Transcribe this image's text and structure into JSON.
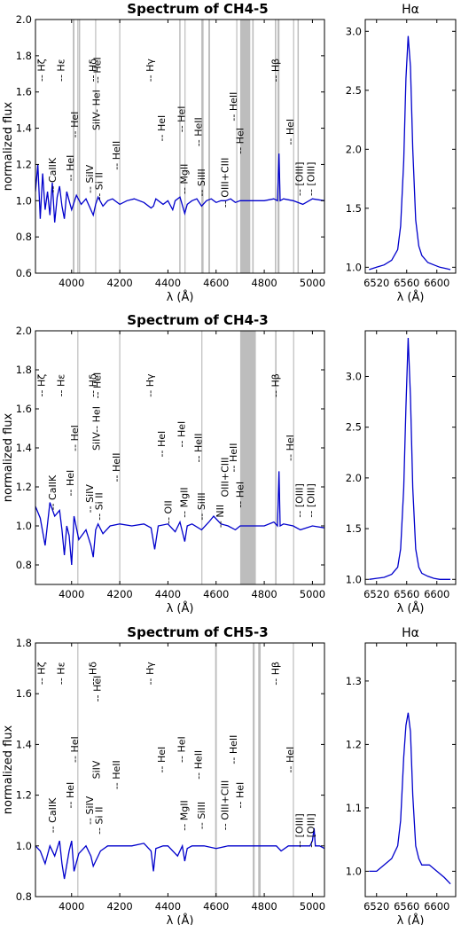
{
  "chart_data": [
    {
      "type": "line",
      "title": "Spectrum of CH4-5",
      "xlabel": "λ (Å)",
      "ylabel": "normalized flux",
      "xlim": [
        3850,
        5050
      ],
      "ylim": [
        0.6,
        2.0
      ],
      "xticks": [
        4000,
        4200,
        4400,
        4600,
        4800,
        5000
      ],
      "yticks": [
        0.6,
        0.8,
        1.0,
        1.2,
        1.4,
        1.6,
        1.8,
        2.0
      ],
      "line_color": "#0000cc",
      "band_color": "#bdbdbd",
      "thin_lines": [
        4026,
        4100,
        4200,
        4471,
        4541,
        4686,
        4713,
        4861,
        4922
      ],
      "bands": [
        [
          4005,
          4012
        ],
        [
          4030,
          4035
        ],
        [
          4447,
          4452
        ],
        [
          4540,
          4548
        ],
        [
          4568,
          4575
        ],
        [
          4700,
          4742
        ],
        [
          4750,
          4756
        ],
        [
          4844,
          4850
        ],
        [
          4855,
          4860
        ],
        [
          4938,
          4943
        ]
      ],
      "series": [
        {
          "x": [
            3850,
            3860,
            3870,
            3880,
            3890,
            3900,
            3910,
            3920,
            3930,
            3940,
            3950,
            3960,
            3970,
            3980,
            3990,
            4000,
            4020,
            4040,
            4060,
            4080,
            4090,
            4100,
            4110,
            4130,
            4150,
            4170,
            4200,
            4230,
            4260,
            4300,
            4330,
            4340,
            4350,
            4380,
            4400,
            4420,
            4430,
            4450,
            4470,
            4480,
            4500,
            4520,
            4540,
            4560,
            4580,
            4600,
            4620,
            4640,
            4660,
            4680,
            4700,
            4720,
            4760,
            4800,
            4840,
            4855,
            4861,
            4866,
            4880,
            4920,
            4960,
            5000,
            5050
          ],
          "y": [
            1.05,
            1.2,
            0.9,
            1.15,
            0.95,
            1.05,
            0.92,
            1.1,
            0.88,
            1.02,
            1.08,
            0.97,
            0.9,
            1.05,
            1.0,
            0.95,
            1.03,
            0.98,
            1.01,
            0.95,
            0.92,
            0.98,
            1.02,
            0.97,
            1.0,
            1.01,
            0.98,
            1.0,
            1.01,
            0.99,
            0.96,
            0.97,
            1.01,
            0.98,
            1.0,
            0.95,
            1.0,
            1.02,
            0.93,
            0.98,
            1.0,
            1.01,
            0.97,
            1.0,
            1.01,
            0.99,
            1.0,
            1.0,
            1.01,
            0.99,
            1.0,
            1.0,
            1.0,
            1.0,
            1.01,
            1.0,
            1.26,
            1.0,
            1.01,
            1.0,
            0.98,
            1.01,
            1.0
          ]
        }
      ],
      "annotations": [
        {
          "text": "-- Hζ",
          "x": 3889,
          "y": 1.72
        },
        {
          "text": "-- Hε",
          "x": 3970,
          "y": 1.72
        },
        {
          "text": "-- HeI",
          "x": 4009,
          "y": 1.18
        },
        {
          "text": "-- HeI",
          "x": 4026,
          "y": 1.42
        },
        {
          "text": "-- Hδ",
          "x": 4102,
          "y": 1.72
        },
        {
          "text": "-- HeI",
          "x": 4121,
          "y": 1.72
        },
        {
          "text": "-- HeII",
          "x": 4200,
          "y": 1.25
        },
        {
          "text": "-- Hγ",
          "x": 4340,
          "y": 1.72
        },
        {
          "text": "-- HeI",
          "x": 4388,
          "y": 1.4
        },
        {
          "text": "-- HeI",
          "x": 4471,
          "y": 1.45
        },
        {
          "text": "-- HeII",
          "x": 4541,
          "y": 1.38
        },
        {
          "text": "-- HeI",
          "x": 4713,
          "y": 1.33
        },
        {
          "text": "-- HeII",
          "x": 4686,
          "y": 1.52
        },
        {
          "text": "-- Hβ",
          "x": 4861,
          "y": 1.72
        },
        {
          "text": "-- HeI",
          "x": 4922,
          "y": 1.38
        },
        {
          "text": "-- CaIIK",
          "x": 3934,
          "y": 1.14
        },
        {
          "text": "-- SiIV",
          "x": 4089,
          "y": 1.12
        },
        {
          "text": "-- Si II",
          "x": 4128,
          "y": 1.08
        },
        {
          "text": "SiIV- HeI",
          "x": 4116,
          "y": 1.5
        },
        {
          "text": "-- MgII",
          "x": 4481,
          "y": 1.12
        },
        {
          "text": "-- SiIII",
          "x": 4553,
          "y": 1.1
        },
        {
          "text": "-- OIII+CIII",
          "x": 4650,
          "y": 1.1
        },
        {
          "text": "-- [OIII]",
          "x": 4959,
          "y": 1.12
        },
        {
          "text": "-- [OIII]",
          "x": 5007,
          "y": 1.12
        }
      ]
    },
    {
      "type": "line",
      "title": "Hα",
      "xlabel": "λ (Å)",
      "ylabel": "",
      "xlim": [
        6505,
        6625
      ],
      "ylim": [
        0.95,
        3.1
      ],
      "xticks": [
        6520,
        6560,
        6600
      ],
      "yticks": [
        1.0,
        1.5,
        2.0,
        2.5,
        3.0
      ],
      "line_color": "#0000cc",
      "series": [
        {
          "x": [
            6510,
            6520,
            6530,
            6540,
            6548,
            6552,
            6556,
            6559,
            6562,
            6565,
            6568,
            6572,
            6576,
            6580,
            6588,
            6596,
            6604,
            6612,
            6618
          ],
          "y": [
            0.98,
            1.0,
            1.02,
            1.06,
            1.15,
            1.35,
            1.9,
            2.6,
            2.96,
            2.7,
            2.0,
            1.4,
            1.18,
            1.1,
            1.04,
            1.02,
            1.0,
            0.99,
            0.98
          ]
        }
      ]
    },
    {
      "type": "line",
      "title": "Spectrum of CH4-3",
      "xlabel": "λ (Å)",
      "ylabel": "normalized flux",
      "xlim": [
        3850,
        5050
      ],
      "ylim": [
        0.7,
        2.0
      ],
      "xticks": [
        4000,
        4200,
        4400,
        4600,
        4800,
        5000
      ],
      "yticks": [
        0.8,
        1.0,
        1.2,
        1.4,
        1.6,
        1.8,
        2.0
      ],
      "line_color": "#0000cc",
      "band_color": "#bdbdbd",
      "thin_lines": [
        4026,
        4200,
        4541,
        4922
      ],
      "bands": [
        [
          4700,
          4765
        ],
        [
          4845,
          4851
        ]
      ],
      "series": [
        {
          "x": [
            3850,
            3870,
            3890,
            3910,
            3930,
            3950,
            3960,
            3970,
            3980,
            3990,
            4000,
            4010,
            4030,
            4060,
            4080,
            4090,
            4100,
            4110,
            4130,
            4160,
            4200,
            4250,
            4300,
            4330,
            4345,
            4360,
            4400,
            4430,
            4450,
            4470,
            4480,
            4500,
            4540,
            4570,
            4590,
            4620,
            4650,
            4680,
            4700,
            4760,
            4800,
            4840,
            4855,
            4861,
            4866,
            4880,
            4920,
            4950,
            5000,
            5050
          ],
          "y": [
            1.1,
            1.04,
            0.9,
            1.12,
            1.05,
            1.08,
            0.98,
            0.85,
            1.0,
            0.95,
            0.8,
            1.05,
            0.93,
            0.98,
            0.9,
            0.84,
            0.98,
            1.01,
            0.96,
            1.0,
            1.01,
            1.0,
            1.01,
            0.99,
            0.88,
            1.0,
            1.01,
            0.97,
            1.02,
            0.92,
            1.0,
            1.01,
            0.98,
            1.02,
            1.05,
            1.01,
            1.0,
            0.98,
            1.0,
            1.0,
            1.0,
            1.02,
            1.0,
            1.28,
            1.0,
            1.01,
            1.0,
            0.98,
            1.0,
            0.99
          ]
        }
      ],
      "annotations": [
        {
          "text": "-- Hζ",
          "x": 3889,
          "y": 1.72
        },
        {
          "text": "-- Hε",
          "x": 3970,
          "y": 1.72
        },
        {
          "text": "-- HeI",
          "x": 4009,
          "y": 1.22
        },
        {
          "text": "-- HeI",
          "x": 4026,
          "y": 1.45
        },
        {
          "text": "-- Hδ",
          "x": 4102,
          "y": 1.72
        },
        {
          "text": "-- HeI",
          "x": 4121,
          "y": 1.72
        },
        {
          "text": "-- HeII",
          "x": 4200,
          "y": 1.3
        },
        {
          "text": "-- Hγ",
          "x": 4340,
          "y": 1.72
        },
        {
          "text": "-- HeI",
          "x": 4388,
          "y": 1.42
        },
        {
          "text": "-- HeI",
          "x": 4471,
          "y": 1.47
        },
        {
          "text": "-- HeII",
          "x": 4541,
          "y": 1.4
        },
        {
          "text": "-- HeI",
          "x": 4713,
          "y": 1.16
        },
        {
          "text": "-- HeII",
          "x": 4686,
          "y": 1.35
        },
        {
          "text": "-- Hβ",
          "x": 4861,
          "y": 1.72
        },
        {
          "text": "-- HeI",
          "x": 4922,
          "y": 1.4
        },
        {
          "text": "-- CaIIK",
          "x": 3934,
          "y": 1.17
        },
        {
          "text": "-- SiIV",
          "x": 4089,
          "y": 1.14
        },
        {
          "text": "-- Si II",
          "x": 4128,
          "y": 1.1
        },
        {
          "text": "SiIV-- HeI",
          "x": 4116,
          "y": 1.5
        },
        {
          "text": "-- OII",
          "x": 4415,
          "y": 1.07
        },
        {
          "text": "-- MgII",
          "x": 4481,
          "y": 1.12
        },
        {
          "text": "-- SiIII",
          "x": 4553,
          "y": 1.1
        },
        {
          "text": "-- NII",
          "x": 4630,
          "y": 1.05
        },
        {
          "text": "OIII+CIII",
          "x": 4650,
          "y": 1.25
        },
        {
          "text": "-- [OIII]",
          "x": 4959,
          "y": 1.13
        },
        {
          "text": "-- [OIII]",
          "x": 5007,
          "y": 1.13
        }
      ]
    },
    {
      "type": "line",
      "title": "",
      "xlabel": "λ (Å)",
      "ylabel": "",
      "xlim": [
        6505,
        6625
      ],
      "ylim": [
        0.95,
        3.45
      ],
      "xticks": [
        6520,
        6560,
        6600
      ],
      "yticks": [
        1.0,
        1.5,
        2.0,
        2.5,
        3.0
      ],
      "line_color": "#0000cc",
      "series": [
        {
          "x": [
            6510,
            6520,
            6530,
            6540,
            6548,
            6552,
            6556,
            6559,
            6562,
            6565,
            6568,
            6572,
            6576,
            6580,
            6588,
            6596,
            6604,
            6612,
            6618
          ],
          "y": [
            1.0,
            1.01,
            1.02,
            1.05,
            1.12,
            1.3,
            1.9,
            2.7,
            3.38,
            2.8,
            1.9,
            1.3,
            1.12,
            1.06,
            1.03,
            1.01,
            1.0,
            1.0,
            1.0
          ]
        }
      ]
    },
    {
      "type": "line",
      "title": "Spectrum of CH5-3",
      "xlabel": "λ (Å)",
      "ylabel": "normalized flux",
      "xlim": [
        3850,
        5050
      ],
      "ylim": [
        0.8,
        1.8
      ],
      "xticks": [
        4000,
        4200,
        4400,
        4600,
        4800,
        5000
      ],
      "yticks": [
        0.8,
        1.0,
        1.2,
        1.4,
        1.6,
        1.8
      ],
      "line_color": "#0000cc",
      "band_color": "#bdbdbd",
      "thin_lines": [
        4026,
        4921
      ],
      "bands": [
        [
          4596,
          4603
        ],
        [
          4752,
          4760
        ],
        [
          4775,
          4785
        ]
      ],
      "series": [
        {
          "x": [
            3850,
            3870,
            3890,
            3910,
            3930,
            3950,
            3960,
            3970,
            3990,
            4000,
            4010,
            4030,
            4060,
            4080,
            4090,
            4100,
            4120,
            4150,
            4200,
            4250,
            4300,
            4330,
            4340,
            4350,
            4380,
            4400,
            4440,
            4460,
            4470,
            4480,
            4500,
            4550,
            4600,
            4650,
            4700,
            4750,
            4800,
            4850,
            4870,
            4900,
            4950,
            4990,
            5000,
            5007,
            5012,
            5030,
            5050
          ],
          "y": [
            1.0,
            0.98,
            0.93,
            1.0,
            0.96,
            1.02,
            0.93,
            0.87,
            0.98,
            1.02,
            0.9,
            0.97,
            1.0,
            0.96,
            0.92,
            0.94,
            0.98,
            1.0,
            1.0,
            1.0,
            1.01,
            0.98,
            0.9,
            0.99,
            1.0,
            1.0,
            0.96,
            1.0,
            0.94,
            0.99,
            1.0,
            1.0,
            0.99,
            1.0,
            1.0,
            1.0,
            1.0,
            1.0,
            0.98,
            1.0,
            1.0,
            1.0,
            1.02,
            1.07,
            1.0,
            1.0,
            0.99
          ]
        }
      ],
      "annotations": [
        {
          "text": "-- Hζ",
          "x": 3889,
          "y": 1.68
        },
        {
          "text": "-- Hε",
          "x": 3970,
          "y": 1.68
        },
        {
          "text": "-- HeI",
          "x": 4009,
          "y": 1.2
        },
        {
          "text": "-- HeI",
          "x": 4026,
          "y": 1.38
        },
        {
          "text": "-- Hδ",
          "x": 4102,
          "y": 1.68
        },
        {
          "text": "-- HeI",
          "x": 4121,
          "y": 1.62
        },
        {
          "text": "-- HeII",
          "x": 4200,
          "y": 1.28
        },
        {
          "text": "-- Hγ",
          "x": 4340,
          "y": 1.68
        },
        {
          "text": "-- HeI",
          "x": 4388,
          "y": 1.34
        },
        {
          "text": "-- HeI",
          "x": 4471,
          "y": 1.38
        },
        {
          "text": "-- HeII",
          "x": 4541,
          "y": 1.32
        },
        {
          "text": "-- HeI",
          "x": 4713,
          "y": 1.2
        },
        {
          "text": "-- HeII",
          "x": 4686,
          "y": 1.38
        },
        {
          "text": "-- Hβ",
          "x": 4861,
          "y": 1.68
        },
        {
          "text": "-- HeI",
          "x": 4922,
          "y": 1.34
        },
        {
          "text": "-- CaIIK",
          "x": 3934,
          "y": 1.12
        },
        {
          "text": "-- SiIV",
          "x": 4089,
          "y": 1.14
        },
        {
          "text": "-- Si II",
          "x": 4128,
          "y": 1.1
        },
        {
          "text": "SiIV",
          "x": 4116,
          "y": 1.3
        },
        {
          "text": "-- MgII",
          "x": 4481,
          "y": 1.12
        },
        {
          "text": "-- SiIII",
          "x": 4553,
          "y": 1.12
        },
        {
          "text": "-- OIII+CIII",
          "x": 4650,
          "y": 1.16
        },
        {
          "text": "-- [OIII]",
          "x": 4959,
          "y": 1.06
        },
        {
          "text": "-- [OIII]",
          "x": 5007,
          "y": 1.06
        }
      ]
    },
    {
      "type": "line",
      "title": "Hα",
      "xlabel": "λ (Å)",
      "ylabel": "",
      "xlim": [
        6505,
        6625
      ],
      "ylim": [
        0.96,
        1.36
      ],
      "xticks": [
        6520,
        6560,
        6600
      ],
      "yticks": [
        1.0,
        1.1,
        1.2,
        1.3
      ],
      "line_color": "#0000cc",
      "series": [
        {
          "x": [
            6510,
            6520,
            6530,
            6540,
            6548,
            6552,
            6556,
            6559,
            6562,
            6565,
            6568,
            6572,
            6576,
            6580,
            6590,
            6600,
            6610,
            6618
          ],
          "y": [
            1.0,
            1.0,
            1.01,
            1.02,
            1.04,
            1.08,
            1.18,
            1.23,
            1.25,
            1.22,
            1.12,
            1.04,
            1.02,
            1.01,
            1.01,
            1.0,
            0.99,
            0.98
          ]
        }
      ]
    }
  ]
}
